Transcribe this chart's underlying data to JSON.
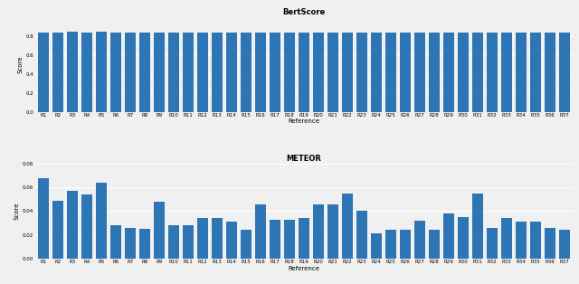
{
  "title_bert": "BertScore",
  "title_meteor": "METEOR",
  "xlabel": "Reference",
  "ylabel": "Score",
  "bar_color": "#2e75b6",
  "categories": [
    "R1",
    "R2",
    "R3",
    "R4",
    "R5",
    "R6",
    "R7",
    "R8",
    "R9",
    "R10",
    "R11",
    "R12",
    "R13",
    "R14",
    "R15",
    "R16",
    "R17",
    "R18",
    "R19",
    "R20",
    "R21",
    "R22",
    "R23",
    "R24",
    "R25",
    "R26",
    "R27",
    "R28",
    "R29",
    "R30",
    "R31",
    "R32",
    "R33",
    "R34",
    "R35",
    "R36",
    "R37"
  ],
  "bert_values": [
    0.84,
    0.84,
    0.841,
    0.84,
    0.843,
    0.836,
    0.836,
    0.838,
    0.84,
    0.838,
    0.836,
    0.837,
    0.837,
    0.839,
    0.835,
    0.837,
    0.837,
    0.836,
    0.837,
    0.836,
    0.836,
    0.837,
    0.836,
    0.839,
    0.833,
    0.836,
    0.836,
    0.836,
    0.836,
    0.836,
    0.836,
    0.837,
    0.836,
    0.837,
    0.835,
    0.836,
    0.837
  ],
  "meteor_values": [
    0.068,
    0.049,
    0.057,
    0.054,
    0.064,
    0.028,
    0.026,
    0.025,
    0.048,
    0.028,
    0.028,
    0.034,
    0.034,
    0.031,
    0.024,
    0.046,
    0.033,
    0.033,
    0.034,
    0.046,
    0.046,
    0.055,
    0.04,
    0.021,
    0.024,
    0.024,
    0.032,
    0.024,
    0.038,
    0.035,
    0.055,
    0.026,
    0.034,
    0.031,
    0.031,
    0.026,
    0.024
  ],
  "bert_ylim": [
    0.0,
    1.0
  ],
  "bert_yticks": [
    0.0,
    0.2,
    0.4,
    0.6,
    0.8
  ],
  "meteor_ylim": [
    0.0,
    0.08
  ],
  "meteor_yticks": [
    0.0,
    0.02,
    0.04,
    0.06,
    0.08
  ],
  "background_color": "#f0f0f0",
  "grid_color": "white",
  "title_fontsize": 6,
  "label_fontsize": 5,
  "tick_fontsize": 4
}
